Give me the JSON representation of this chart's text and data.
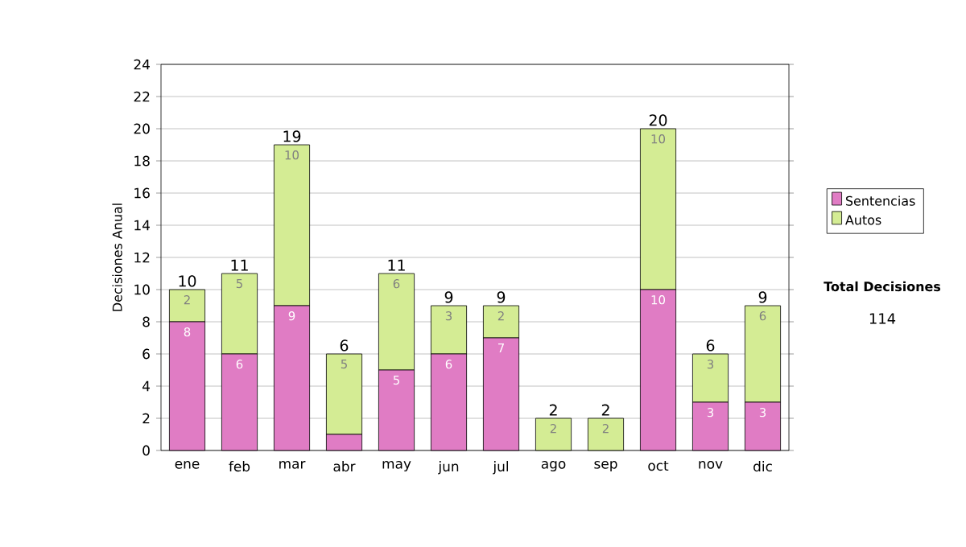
{
  "chart_data": {
    "type": "bar",
    "stacked": true,
    "ylabel": "Decisiones Anual",
    "categories": [
      "ene",
      "feb",
      "mar",
      "abr",
      "may",
      "jun",
      "jul",
      "ago",
      "sep",
      "oct",
      "nov",
      "dic"
    ],
    "series": [
      {
        "name": "Sentencias",
        "color": "#e07cc4",
        "values": [
          8,
          6,
          9,
          1,
          5,
          6,
          7,
          0,
          0,
          10,
          3,
          3
        ],
        "value_labels": [
          "8",
          "6",
          "9",
          null,
          "5",
          "6",
          "7",
          null,
          null,
          "10",
          "3",
          "3"
        ]
      },
      {
        "name": "Autos",
        "color": "#d4ec94",
        "values": [
          2,
          5,
          10,
          5,
          6,
          3,
          2,
          2,
          2,
          10,
          3,
          6
        ],
        "value_labels": [
          "2",
          "5",
          "10",
          "5",
          "6",
          "3",
          "2",
          "2",
          "2",
          "10",
          "3",
          "6"
        ]
      }
    ],
    "totals": [
      "10",
      "11",
      "19",
      "6",
      "11",
      "9",
      "9",
      "2",
      "2",
      "20",
      "6",
      "9"
    ],
    "ylim": [
      0,
      24
    ],
    "yticks": [
      0,
      2,
      4,
      6,
      8,
      10,
      12,
      14,
      16,
      18,
      20,
      22,
      24
    ],
    "grid": "y",
    "legend": "right",
    "annotations": [
      "Total Decisiones",
      "114"
    ]
  }
}
